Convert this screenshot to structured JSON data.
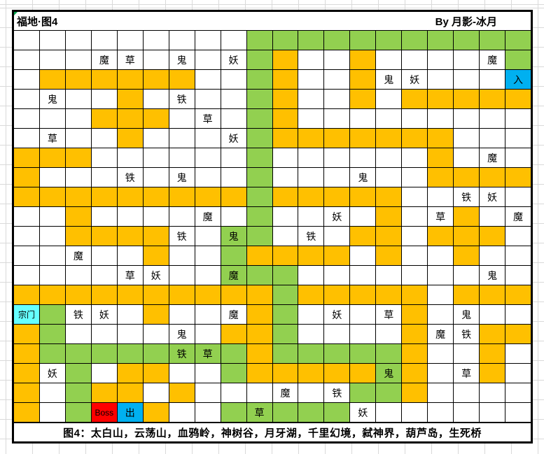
{
  "title_row": {
    "title": "福地·图4",
    "credit": "By 月影-冰月"
  },
  "caption": "图4：太白山，云荡山，血鸦岭，神树谷，月牙湖，千里幻境，弑神界，葫芦岛，生死桥",
  "colors": {
    ".": "#FFFFFF",
    "O": "#FFC000",
    "G": "#92D050",
    "B": "#00B0F0",
    "R": "#FF0000",
    "C": "#66FFFF"
  },
  "grid": {
    "rows": 20,
    "cols": 20,
    "bg": [
      ".........GGGGGGGGGGG",
      ".........GO..O.....G",
      ".OOOOOO..GO..O.....B",
      "....O....GO..O.OOOOO",
      "...OOO...GO.........",
      "....O....GOOOOOOO...",
      "OOO......G......O...",
      "O........G......OOOO",
      "OOOOOOOOOGOOOOO.....",
      "..O......G....O..O..",
      "..OOOO..GG...OO.OOO.",
      ".....O..GOOOO.O..O..",
      "........GGG.........",
      "OOOOOOOOOOGOOOOO.OOO",
      "CG...O...OG....O....",
      "OG......OOG....O..OO",
      "OGGGGGGGGOGGGGGO..O.",
      "O.G.OO..GOOOOOGO..O.",
      "O.GOO.O......GGO....",
      "O.GRBO..GGGGG......."
    ],
    "labels": [
      [
        1,
        3,
        "魔"
      ],
      [
        1,
        4,
        "草"
      ],
      [
        1,
        6,
        "鬼"
      ],
      [
        1,
        8,
        "妖"
      ],
      [
        1,
        18,
        "魔"
      ],
      [
        2,
        14,
        "鬼"
      ],
      [
        2,
        15,
        "妖"
      ],
      [
        2,
        19,
        "入"
      ],
      [
        3,
        1,
        "鬼"
      ],
      [
        3,
        6,
        "铁"
      ],
      [
        4,
        7,
        "草"
      ],
      [
        5,
        1,
        "草"
      ],
      [
        5,
        8,
        "妖"
      ],
      [
        6,
        18,
        "魔"
      ],
      [
        7,
        4,
        "铁"
      ],
      [
        7,
        6,
        "鬼"
      ],
      [
        7,
        13,
        "鬼"
      ],
      [
        8,
        17,
        "铁"
      ],
      [
        8,
        18,
        "妖"
      ],
      [
        9,
        7,
        "魔"
      ],
      [
        9,
        12,
        "妖"
      ],
      [
        9,
        16,
        "草"
      ],
      [
        9,
        19,
        "魔"
      ],
      [
        10,
        6,
        "铁"
      ],
      [
        10,
        8,
        "鬼"
      ],
      [
        10,
        11,
        "铁"
      ],
      [
        11,
        2,
        "魔"
      ],
      [
        12,
        4,
        "草"
      ],
      [
        12,
        5,
        "妖"
      ],
      [
        12,
        8,
        "魔"
      ],
      [
        12,
        18,
        "鬼"
      ],
      [
        14,
        0,
        "宗门"
      ],
      [
        14,
        2,
        "铁"
      ],
      [
        14,
        3,
        "妖"
      ],
      [
        14,
        8,
        "魔"
      ],
      [
        14,
        12,
        "妖"
      ],
      [
        14,
        14,
        "草"
      ],
      [
        14,
        17,
        "鬼"
      ],
      [
        15,
        6,
        "鬼"
      ],
      [
        15,
        16,
        "魔"
      ],
      [
        15,
        17,
        "铁"
      ],
      [
        16,
        6,
        "铁"
      ],
      [
        16,
        7,
        "草"
      ],
      [
        17,
        1,
        "妖"
      ],
      [
        17,
        14,
        "鬼"
      ],
      [
        17,
        17,
        "草"
      ],
      [
        18,
        10,
        "魔"
      ],
      [
        18,
        12,
        "铁"
      ],
      [
        19,
        3,
        "Boss"
      ],
      [
        19,
        4,
        "出"
      ],
      [
        19,
        9,
        "草"
      ],
      [
        19,
        13,
        "妖"
      ]
    ]
  }
}
